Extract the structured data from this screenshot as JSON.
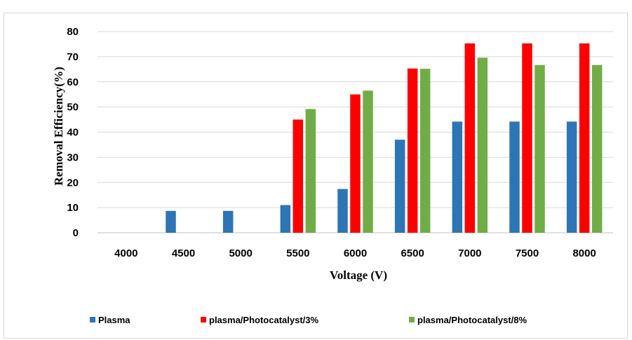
{
  "chart_data": {
    "type": "bar",
    "categories": [
      "4000",
      "4500",
      "5000",
      "5500",
      "6000",
      "6500",
      "7000",
      "7500",
      "8000"
    ],
    "series": [
      {
        "name": "Plasma",
        "color": "#2e75b6",
        "values": [
          0,
          8.7,
          8.7,
          11,
          17.4,
          37,
          44.2,
          44.2,
          44.2
        ]
      },
      {
        "name": "plasma/Photocatalyst/3%",
        "color": "#ff0000",
        "values": [
          0,
          0,
          0,
          45,
          55,
          65.3,
          75.3,
          75.3,
          75.3
        ]
      },
      {
        "name": "plasma/Photocatalyst/8%",
        "color": "#70ad47",
        "values": [
          0,
          0,
          0,
          49.2,
          56.5,
          65.2,
          69.6,
          66.7,
          66.7
        ]
      }
    ],
    "xlabel": "Voltage (V)",
    "ylabel": "Removal Efficiency(%)",
    "ylim": [
      0,
      80
    ],
    "yticks": [
      "0",
      "10",
      "20",
      "30",
      "40",
      "50",
      "60",
      "70",
      "80"
    ],
    "grid": true,
    "legend_position": "bottom"
  }
}
